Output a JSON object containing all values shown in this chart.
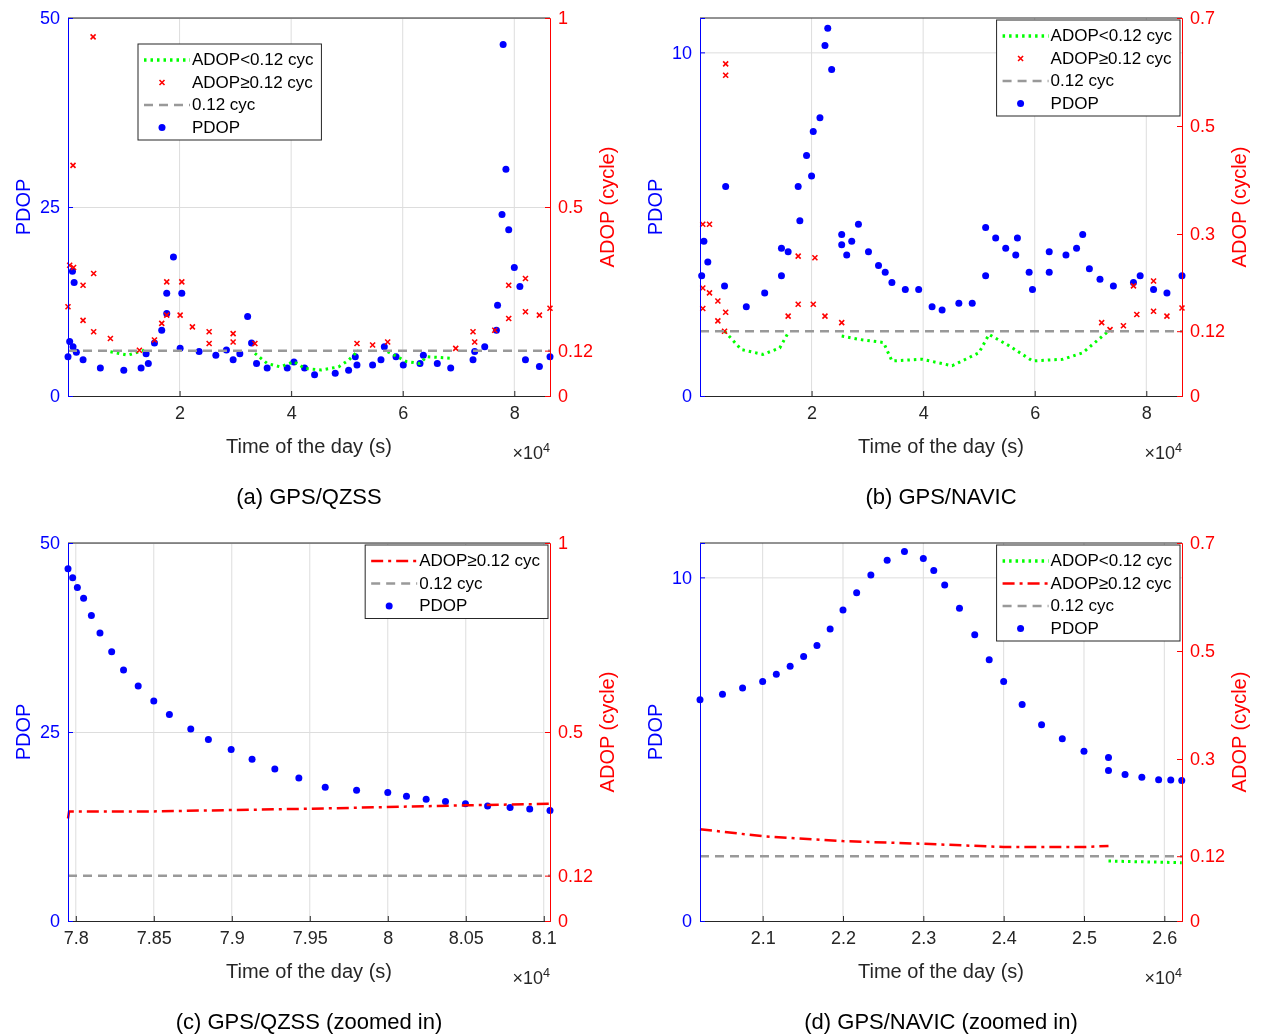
{
  "chart_data": [
    {
      "type": "line",
      "title": "(a) GPS/QZSS",
      "xlabel": "Time of the day (s)",
      "ylabel": "PDOP",
      "y2label": "ADOP (cycle)",
      "annotations": [
        "×10$^{4}$"
      ],
      "xlim": [
        0,
        8.64
      ],
      "xticks": [
        2,
        4,
        6,
        8
      ],
      "ylim": [
        0,
        50
      ],
      "yticks": [
        0,
        25,
        50
      ],
      "y2lim": [
        0,
        1
      ],
      "y2ticks": [
        0,
        0.12,
        0.5,
        1
      ],
      "grid": true,
      "legend": "top left",
      "series": [
        {
          "name": "ADOP<0.12 cyc",
          "type": "line",
          "axis": "y2",
          "color": "#00ff00",
          "line_style": "dotted",
          "marker": "none",
          "x": [
            0.76,
            1.07,
            1.37,
            2.0,
            3.35,
            3.57,
            3.81,
            4.05,
            4.24,
            4.54,
            4.85,
            5.03,
            5.21,
            5.5,
            5.73,
            6.07,
            6.31,
            6.43,
            6.86
          ],
          "values": [
            0.117,
            0.108,
            0.121,
            null,
            0.113,
            0.086,
            0.077,
            0.091,
            0.073,
            0.069,
            0.077,
            0.095,
            0.121,
            null,
            0.117,
            0.091,
            0.086,
            0.104,
            0.1
          ]
        },
        {
          "name": "ADOP≥0.12 cyc",
          "type": "scatter",
          "axis": "y2",
          "color": "#ff0000",
          "marker": "cross",
          "x": [
            0,
            0.03,
            0.1,
            0.27,
            0.09,
            0.45,
            0.46,
            0.27,
            0.46,
            0.76,
            1.28,
            1.55,
            1.68,
            1.77,
            1.77,
            2.04,
            2.01,
            2.23,
            2.53,
            2.53,
            2.96,
            2.96,
            3.35,
            5.18,
            5.46,
            5.73,
            6.95,
            7.29,
            7.26,
            7.65,
            7.9,
            7.9,
            8.2,
            8.2,
            8.45,
            8.64
          ],
          "values": [
            0.236,
            0.346,
            0.34,
            0.293,
            0.61,
            0.95,
            0.324,
            0.2,
            0.17,
            0.152,
            0.121,
            0.148,
            0.192,
            0.214,
            0.302,
            0.302,
            0.214,
            0.183,
            0.17,
            0.139,
            0.143,
            0.165,
            0.139,
            0.139,
            0.135,
            0.143,
            0.126,
            0.143,
            0.17,
            0.174,
            0.205,
            0.293,
            0.311,
            0.223,
            0.214,
            0.232
          ]
        },
        {
          "name": "0.12 cyc",
          "type": "line",
          "axis": "y2",
          "color": "#999999",
          "line_style": "dashed",
          "marker": "none",
          "x": [
            0,
            8.64
          ],
          "values": [
            0.12,
            0.12
          ]
        },
        {
          "name": "PDOP",
          "type": "scatter",
          "color": "#0000ff",
          "marker": "circle",
          "x": [
            0,
            0.03,
            0.09,
            0.15,
            0.08,
            0.11,
            0.27,
            0.58,
            1.0,
            1.31,
            1.44,
            1.4,
            1.55,
            1.68,
            1.77,
            1.77,
            1.89,
            2.04,
            2.01,
            2.35,
            2.65,
            2.84,
            2.96,
            3.08,
            3.22,
            3.29,
            3.38,
            3.57,
            3.93,
            4.05,
            4.24,
            4.42,
            4.79,
            5.03,
            5.18,
            5.15,
            5.46,
            5.61,
            5.67,
            5.88,
            6.01,
            6.31,
            6.37,
            6.62,
            6.86,
            7.26,
            7.29,
            7.47,
            7.68,
            7.7,
            7.78,
            7.8,
            7.85,
            7.9,
            8.0,
            8.1,
            8.2,
            8.45,
            8.64
          ],
          "values": [
            5.2,
            7.2,
            6.5,
            5.8,
            16.5,
            15,
            4.8,
            3.7,
            3.4,
            3.7,
            4.3,
            5.6,
            7,
            8.7,
            10.9,
            13.6,
            18.4,
            13.6,
            6.3,
            5.9,
            5.4,
            6.1,
            4.8,
            5.6,
            10.5,
            7,
            4.3,
            3.7,
            3.7,
            4.5,
            3.7,
            2.8,
            3,
            3.4,
            4.1,
            5.2,
            4.1,
            4.8,
            6.5,
            5.2,
            4.1,
            4.3,
            5.4,
            4.3,
            3.7,
            4.8,
            5.9,
            6.5,
            8.7,
            12,
            24,
            46.5,
            30,
            22,
            17,
            14.5,
            4.8,
            3.9,
            5.2
          ]
        }
      ]
    },
    {
      "type": "line",
      "title": "(b) GPS/NAVIC",
      "xlabel": "Time of the day (s)",
      "ylabel": "PDOP",
      "y2label": "ADOP (cycle)",
      "annotations": [
        "×10$^{4}$"
      ],
      "xlim": [
        0,
        8.64
      ],
      "xticks": [
        2,
        4,
        6,
        8
      ],
      "ylim": [
        0,
        11
      ],
      "yticks": [
        0,
        10
      ],
      "y2lim": [
        0,
        0.7
      ],
      "y2ticks": [
        0,
        0.12,
        0.3,
        0.5,
        0.7
      ],
      "grid": true,
      "legend": "top right",
      "series": [
        {
          "name": "ADOP<0.12 cyc",
          "type": "line",
          "axis": "y2",
          "color": "#00ff00",
          "line_style": "dotted",
          "marker": "none",
          "x": [
            0.44,
            0.74,
            1.13,
            1.43,
            1.58,
            2.0,
            2.54,
            2.84,
            3.29,
            3.44,
            3.98,
            4.52,
            5.0,
            5.18,
            5.54,
            5.96,
            6.5,
            6.86,
            7.32
          ],
          "values": [
            0.12,
            0.086,
            0.077,
            0.089,
            0.117,
            null,
            0.111,
            0.105,
            0.099,
            0.065,
            0.068,
            0.056,
            0.08,
            0.114,
            0.093,
            0.065,
            0.068,
            0.08,
            0.12
          ]
        },
        {
          "name": "ADOP≥0.12 cyc",
          "type": "scatter",
          "axis": "y2",
          "color": "#ff0000",
          "marker": "cross",
          "x": [
            0.05,
            0.17,
            0.05,
            0.17,
            0.32,
            0.05,
            0.46,
            0.46,
            0.46,
            0.32,
            0.44,
            1.58,
            1.76,
            1.76,
            2.06,
            2.03,
            2.24,
            2.54,
            7.2,
            7.35,
            7.59,
            7.83,
            7.77,
            8.13,
            8.13,
            8.37,
            8.64
          ],
          "values": [
            0.318,
            0.318,
            0.2,
            0.191,
            0.176,
            0.162,
            0.615,
            0.594,
            0.155,
            0.139,
            0.12,
            0.148,
            0.17,
            0.259,
            0.256,
            0.17,
            0.148,
            0.136,
            0.136,
            0.123,
            0.13,
            0.151,
            0.204,
            0.213,
            0.157,
            0.148,
            0.163
          ]
        },
        {
          "name": "0.12 cyc",
          "type": "line",
          "axis": "y2",
          "color": "#999999",
          "line_style": "dashed",
          "marker": "none",
          "x": [
            0,
            8.64
          ],
          "values": [
            0.12,
            0.12
          ]
        },
        {
          "name": "PDOP",
          "type": "scatter",
          "color": "#0000ff",
          "marker": "circle",
          "x": [
            0.03,
            0.07,
            0.46,
            0.14,
            0.44,
            0.83,
            1.16,
            1.46,
            1.46,
            1.58,
            1.79,
            1.76,
            1.91,
            2.03,
            2.0,
            2.15,
            2.24,
            2.29,
            2.36,
            2.54,
            2.54,
            2.63,
            2.72,
            2.84,
            3.02,
            3.2,
            3.32,
            3.44,
            3.68,
            3.92,
            4.16,
            4.34,
            4.64,
            4.88,
            5.12,
            5.12,
            5.3,
            5.48,
            5.69,
            5.66,
            5.9,
            5.96,
            6.26,
            6.26,
            6.56,
            6.75,
            6.86,
            6.98,
            7.17,
            7.41,
            7.77,
            7.89,
            8.13,
            8.37,
            8.64
          ],
          "values": [
            3.5,
            4.5,
            6.1,
            3.9,
            3.2,
            2.6,
            3,
            3.5,
            4.3,
            4.2,
            5.1,
            6.1,
            7,
            7.7,
            6.4,
            8.1,
            10.2,
            10.7,
            9.5,
            4.7,
            4.4,
            4.1,
            4.5,
            5,
            4.2,
            3.8,
            3.6,
            3.3,
            3.1,
            3.1,
            2.6,
            2.5,
            2.7,
            2.7,
            3.5,
            4.9,
            4.6,
            4.3,
            4.6,
            4.1,
            3.6,
            3.1,
            3.6,
            4.2,
            4.1,
            4.3,
            4.7,
            3.7,
            3.4,
            3.2,
            3.3,
            3.5,
            3.1,
            3,
            3.5
          ]
        }
      ]
    },
    {
      "type": "line",
      "title": "(c) GPS/QZSS (zoomed in)",
      "xlabel": "Time of the day (s)",
      "ylabel": "PDOP",
      "y2label": "ADOP (cycle)",
      "annotations": [
        "×10$^{4}$"
      ],
      "xlim": [
        7.795,
        8.104
      ],
      "xticks": [
        7.8,
        7.85,
        7.9,
        7.95,
        8,
        8.05,
        8.1
      ],
      "ylim": [
        0,
        50
      ],
      "yticks": [
        0,
        25,
        50
      ],
      "y2lim": [
        0,
        1
      ],
      "y2ticks": [
        0,
        0.12,
        0.5,
        1
      ],
      "grid": true,
      "legend": "top right",
      "series": [
        {
          "name": "ADOP≥0.12 cyc",
          "type": "line",
          "axis": "y2",
          "color": "#ff0000",
          "line_style": "dashdot",
          "marker": "none",
          "x": [
            7.795,
            7.7957,
            7.85,
            7.95,
            8.05,
            8.104
          ],
          "values": [
            0.271,
            0.29,
            0.29,
            0.297,
            0.306,
            0.31
          ]
        },
        {
          "name": "0.12 cyc",
          "type": "line",
          "axis": "y2",
          "color": "#999999",
          "line_style": "dashed",
          "marker": "none",
          "x": [
            7.795,
            8.104
          ],
          "values": [
            0.12,
            0.12
          ]
        },
        {
          "name": "PDOP",
          "type": "scatter",
          "color": "#0000ff",
          "marker": "circle",
          "x": [
            7.795,
            7.798,
            7.801,
            7.805,
            7.81,
            7.8155,
            7.823,
            7.8306,
            7.84,
            7.85,
            7.86,
            7.8737,
            7.885,
            7.8996,
            7.913,
            7.9276,
            7.943,
            7.9599,
            7.98,
            8.0,
            8.012,
            8.0246,
            8.037,
            8.0498,
            8.064,
            8.0784,
            8.091,
            8.104
          ],
          "values": [
            46.6,
            45.4,
            44.1,
            42.7,
            40.4,
            38.1,
            35.6,
            33.2,
            31.1,
            29.1,
            27.3,
            25.4,
            24,
            22.7,
            21.4,
            20.1,
            18.9,
            17.7,
            17.3,
            17,
            16.5,
            16.1,
            15.8,
            15.5,
            15.2,
            15,
            14.8,
            14.6
          ]
        }
      ]
    },
    {
      "type": "line",
      "title": "(d) GPS/NAVIC (zoomed in)",
      "xlabel": "Time of the day (s)",
      "ylabel": "PDOP",
      "y2label": "ADOP (cycle)",
      "annotations": [
        "×10$^{4}$"
      ],
      "xlim": [
        2.022,
        2.622
      ],
      "xticks": [
        2.1,
        2.2,
        2.3,
        2.4,
        2.5,
        2.6
      ],
      "ylim": [
        0,
        11
      ],
      "yticks": [
        0,
        10
      ],
      "y2lim": [
        0,
        0.7
      ],
      "y2ticks": [
        0,
        0.12,
        0.3,
        0.5,
        0.7
      ],
      "grid": true,
      "legend": "top right",
      "series": [
        {
          "name": "ADOP<0.12 cyc",
          "type": "line",
          "axis": "y2",
          "color": "#00ff00",
          "line_style": "dotted",
          "marker": "none",
          "x": [
            2.5305,
            2.6217
          ],
          "values": [
            0.111,
            0.108
          ]
        },
        {
          "name": "ADOP≥0.12 cyc",
          "type": "line",
          "axis": "y2",
          "color": "#ff0000",
          "line_style": "dashdot",
          "marker": "none",
          "x": [
            2.022,
            2.1,
            2.2,
            2.3,
            2.4,
            2.5,
            2.5305
          ],
          "values": [
            0.17,
            0.157,
            0.148,
            0.143,
            0.137,
            0.137,
            0.139
          ]
        },
        {
          "name": "0.12 cyc",
          "type": "line",
          "axis": "y2",
          "color": "#999999",
          "line_style": "dashed",
          "marker": "none",
          "x": [
            2.022,
            2.622
          ],
          "values": [
            0.12,
            0.12
          ]
        },
        {
          "name": "PDOP",
          "type": "scatter",
          "color": "#0000ff",
          "marker": "circle",
          "x": [
            2.022,
            2.05,
            2.075,
            2.1,
            2.117,
            2.1342,
            2.151,
            2.1676,
            2.184,
            2.2,
            2.217,
            2.2347,
            2.255,
            2.2765,
            2.3,
            2.313,
            2.3266,
            2.345,
            2.364,
            2.382,
            2.4,
            2.423,
            2.4472,
            2.473,
            2.5,
            2.5305,
            2.5305,
            2.5511,
            2.572,
            2.5929,
            2.608,
            2.6217
          ],
          "values": [
            6.44,
            6.6,
            6.78,
            6.97,
            7.18,
            7.41,
            7.7,
            8.02,
            8.5,
            9.05,
            9.55,
            10.07,
            10.5,
            10.75,
            10.55,
            10.2,
            9.78,
            9.1,
            8.33,
            7.6,
            6.97,
            6.3,
            5.71,
            5.3,
            4.94,
            4.76,
            4.38,
            4.26,
            4.18,
            4.11,
            4.1,
            4.09
          ]
        }
      ]
    }
  ]
}
